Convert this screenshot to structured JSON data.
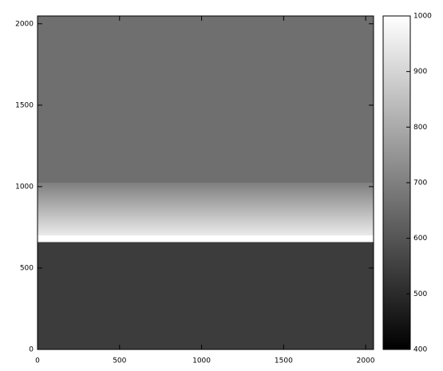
{
  "chart_data": {
    "type": "heatmap",
    "xlim": [
      0,
      2048
    ],
    "ylim": [
      0,
      2048
    ],
    "xticks": [
      0,
      500,
      1000,
      1500,
      2000
    ],
    "yticks": [
      0,
      500,
      1000,
      1500,
      2000
    ],
    "bands": [
      {
        "y": [
          0,
          660
        ],
        "values": [
          540,
          540
        ]
      },
      {
        "y": [
          660,
          700
        ],
        "values": [
          1000,
          1000
        ]
      },
      {
        "y": [
          700,
          1020
        ],
        "values": [
          950,
          700
        ]
      },
      {
        "y": [
          1020,
          2048
        ],
        "values": [
          660,
          660
        ]
      }
    ],
    "clim": [
      400,
      1000
    ],
    "cticks": [
      400,
      500,
      600,
      700,
      800,
      900,
      1000
    ]
  }
}
